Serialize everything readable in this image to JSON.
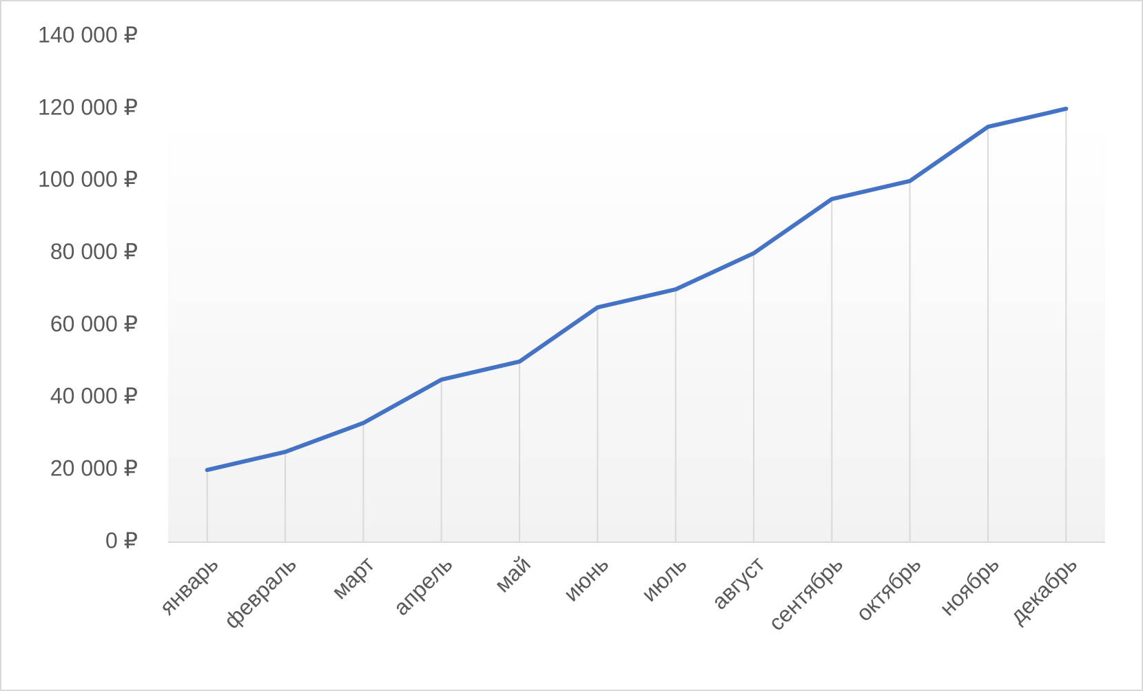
{
  "chart_data": {
    "type": "line",
    "categories": [
      "январь",
      "февраль",
      "март",
      "апрель",
      "май",
      "июнь",
      "июль",
      "август",
      "сентябрь",
      "октябрь",
      "ноябрь",
      "декабрь"
    ],
    "values": [
      20000,
      25000,
      33000,
      45000,
      50000,
      65000,
      70000,
      80000,
      95000,
      100000,
      115000,
      120000
    ],
    "color": "#4472c4",
    "drop_lines": true,
    "ylim": [
      0,
      140000
    ],
    "yticks": [
      {
        "value": 0,
        "label": "0 ₽"
      },
      {
        "value": 20000,
        "label": "20 000 ₽"
      },
      {
        "value": 40000,
        "label": "40 000 ₽"
      },
      {
        "value": 60000,
        "label": "60 000 ₽"
      },
      {
        "value": 80000,
        "label": "80 000 ₽"
      },
      {
        "value": 100000,
        "label": "100 000 ₽"
      },
      {
        "value": 120000,
        "label": "120 000 ₽"
      },
      {
        "value": 140000,
        "label": "140 000 ₽"
      }
    ]
  }
}
